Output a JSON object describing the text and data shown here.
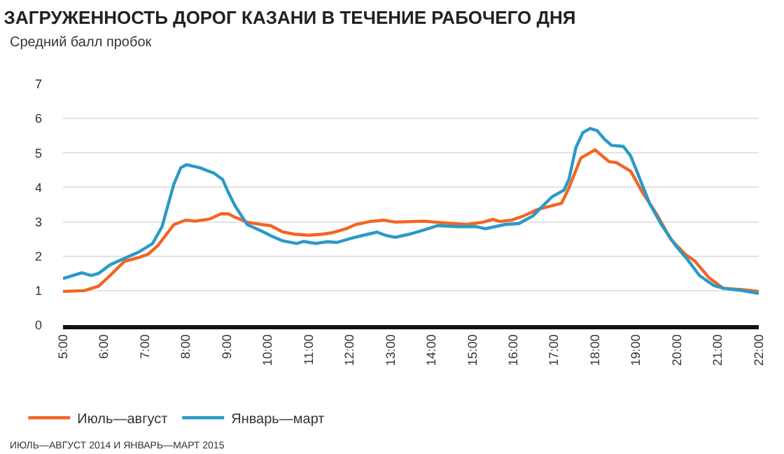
{
  "chart_data": {
    "type": "line",
    "title": "ЗАГРУЖЕННОСТЬ ДОРОГ КАЗАНИ В ТЕЧЕНИЕ РАБОЧЕГО ДНЯ",
    "ylabel": "Средний балл пробок",
    "xlim": [
      5,
      22
    ],
    "ylim": [
      0,
      7
    ],
    "yticks": [
      0,
      1,
      2,
      3,
      4,
      5,
      6,
      7
    ],
    "xticks": [
      {
        "value": 5,
        "label": "5:00"
      },
      {
        "value": 6,
        "label": "6:00"
      },
      {
        "value": 7,
        "label": "7:00"
      },
      {
        "value": 8,
        "label": "8:00"
      },
      {
        "value": 9,
        "label": "9:00"
      },
      {
        "value": 10,
        "label": "10:00"
      },
      {
        "value": 11,
        "label": "11:00"
      },
      {
        "value": 12,
        "label": "12:00"
      },
      {
        "value": 13,
        "label": "13:00"
      },
      {
        "value": 14,
        "label": "14:00"
      },
      {
        "value": 15,
        "label": "15:00"
      },
      {
        "value": 16,
        "label": "16:00"
      },
      {
        "value": 17,
        "label": "17:00"
      },
      {
        "value": 18,
        "label": "18:00"
      },
      {
        "value": 19,
        "label": "19:00"
      },
      {
        "value": 20,
        "label": "20:00"
      },
      {
        "value": 21,
        "label": "21:00"
      },
      {
        "value": 22,
        "label": "22:00"
      }
    ],
    "grid": "y",
    "legend": "bottom left",
    "line_style": "solid",
    "marker": "none",
    "series": [
      {
        "name": "Июль—август",
        "color": "#f26522",
        "x": [
          5.0,
          5.52,
          5.87,
          6.15,
          6.5,
          6.85,
          7.08,
          7.31,
          7.71,
          8.0,
          8.23,
          8.58,
          8.86,
          9.04,
          9.21,
          9.5,
          9.85,
          10.07,
          10.36,
          10.65,
          11.0,
          11.34,
          11.57,
          11.92,
          12.15,
          12.5,
          12.84,
          13.12,
          13.81,
          14.39,
          14.86,
          15.26,
          15.5,
          15.67,
          15.96,
          16.25,
          16.6,
          17.18,
          17.36,
          17.65,
          18.0,
          18.34,
          18.52,
          18.87,
          19.16,
          19.5,
          19.85,
          20.2,
          20.43,
          20.78,
          21.13,
          21.6,
          22.0
        ],
        "values": [
          0.98,
          1.0,
          1.13,
          1.44,
          1.85,
          1.96,
          2.06,
          2.3,
          2.92,
          3.05,
          3.02,
          3.08,
          3.23,
          3.23,
          3.13,
          2.99,
          2.92,
          2.89,
          2.71,
          2.64,
          2.61,
          2.64,
          2.68,
          2.8,
          2.92,
          3.01,
          3.05,
          2.99,
          3.02,
          2.96,
          2.92,
          2.99,
          3.07,
          3.01,
          3.05,
          3.17,
          3.36,
          3.54,
          3.98,
          4.85,
          5.09,
          4.75,
          4.72,
          4.47,
          3.85,
          3.23,
          2.49,
          2.06,
          1.87,
          1.38,
          1.07,
          1.03,
          0.98
        ]
      },
      {
        "name": "Январь—март",
        "color": "#2a9ac6",
        "x": [
          5.0,
          5.46,
          5.69,
          5.87,
          6.15,
          6.5,
          6.85,
          7.19,
          7.42,
          7.71,
          7.88,
          8.02,
          8.34,
          8.69,
          8.9,
          9.04,
          9.21,
          9.5,
          9.85,
          10.07,
          10.36,
          10.71,
          10.88,
          11.17,
          11.46,
          11.69,
          12.04,
          12.38,
          12.67,
          12.9,
          13.12,
          13.46,
          13.81,
          14.16,
          14.63,
          15.09,
          15.32,
          15.79,
          16.14,
          16.48,
          16.95,
          17.24,
          17.36,
          17.53,
          17.7,
          17.88,
          18.05,
          18.23,
          18.4,
          18.69,
          18.87,
          19.1,
          19.33,
          19.62,
          19.97,
          20.26,
          20.55,
          20.9,
          21.13,
          21.6,
          22.0
        ],
        "values": [
          1.35,
          1.52,
          1.44,
          1.5,
          1.75,
          1.94,
          2.12,
          2.37,
          2.86,
          4.1,
          4.57,
          4.66,
          4.57,
          4.41,
          4.23,
          3.85,
          3.45,
          2.92,
          2.73,
          2.6,
          2.45,
          2.37,
          2.43,
          2.37,
          2.42,
          2.4,
          2.52,
          2.62,
          2.7,
          2.6,
          2.55,
          2.64,
          2.76,
          2.89,
          2.86,
          2.86,
          2.8,
          2.92,
          2.95,
          3.17,
          3.73,
          3.92,
          4.23,
          5.15,
          5.59,
          5.71,
          5.65,
          5.4,
          5.22,
          5.19,
          4.91,
          4.23,
          3.54,
          2.92,
          2.3,
          1.9,
          1.44,
          1.15,
          1.07,
          1.0,
          0.92
        ]
      }
    ],
    "annotations": [
      "ИЮЛЬ—АВГУСТ 2014 И ЯНВАРЬ—МАРТ 2015"
    ]
  }
}
